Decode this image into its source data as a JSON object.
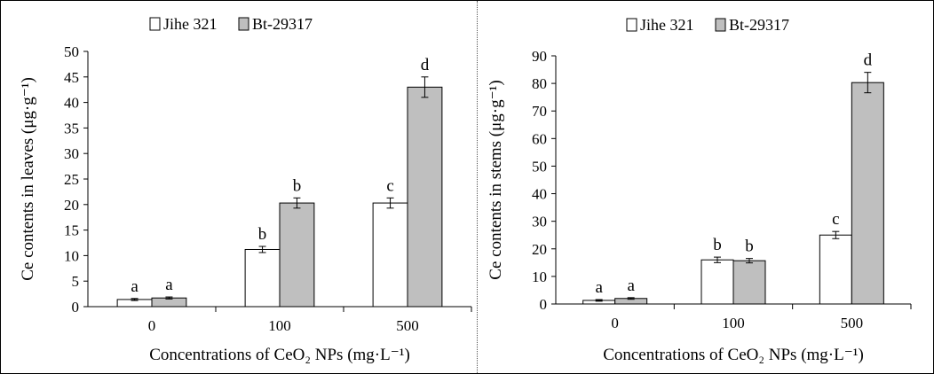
{
  "chart_data": [
    {
      "type": "bar",
      "categories": [
        "0",
        "100",
        "500"
      ],
      "xlabel": "Concentrations of CeO₂ NPs (mg·L⁻¹)",
      "ylabel": "Ce contents in leaves (μg·g⁻¹)",
      "ylim": [
        0,
        50
      ],
      "yticks": [
        0,
        5,
        10,
        15,
        20,
        25,
        30,
        35,
        40,
        45,
        50
      ],
      "legend_position": "top-center",
      "series": [
        {
          "name": "Jihe 321",
          "color": "#ffffff",
          "values": [
            1.4,
            11.2,
            20.3
          ],
          "errors": [
            0.2,
            0.6,
            1.0
          ],
          "letters": [
            "a",
            "b",
            "c"
          ]
        },
        {
          "name": "Bt-29317",
          "color": "#bfbfbf",
          "values": [
            1.7,
            20.3,
            43.0
          ],
          "errors": [
            0.2,
            1.0,
            2.0
          ],
          "letters": [
            "a",
            "b",
            "d"
          ]
        }
      ]
    },
    {
      "type": "bar",
      "categories": [
        "0",
        "100",
        "500"
      ],
      "xlabel": "Concentrations of CeO₂ NPs (mg·L⁻¹)",
      "ylabel": "Ce contents in stems (μg·g⁻¹)",
      "ylim": [
        0,
        90
      ],
      "yticks": [
        0,
        10,
        20,
        30,
        40,
        50,
        60,
        70,
        80,
        90
      ],
      "legend_position": "top-center",
      "series": [
        {
          "name": "Jihe 321",
          "color": "#ffffff",
          "values": [
            1.3,
            16.0,
            25.0
          ],
          "errors": [
            0.3,
            1.0,
            1.3
          ],
          "letters": [
            "a",
            "b",
            "c"
          ]
        },
        {
          "name": "Bt-29317",
          "color": "#bfbfbf",
          "values": [
            2.0,
            15.7,
            80.3
          ],
          "errors": [
            0.3,
            0.8,
            3.7
          ],
          "letters": [
            "a",
            "b",
            "d"
          ]
        }
      ]
    }
  ]
}
